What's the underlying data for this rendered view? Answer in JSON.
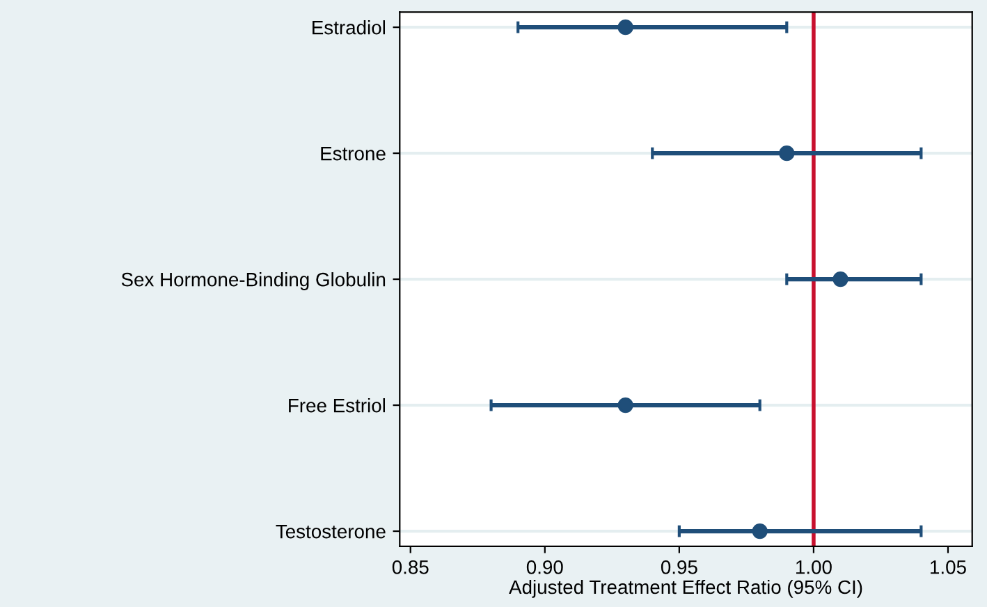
{
  "chart_data": {
    "type": "scatter",
    "orientation": "horizontal",
    "xlabel": "Adjusted Treatment Effect Ratio (95% CI)",
    "categories": [
      "Estradiol",
      "Estrone",
      "Sex Hormone-Binding Globulin",
      "Free Estriol",
      "Testosterone"
    ],
    "values": [
      0.93,
      0.99,
      1.01,
      0.93,
      0.98
    ],
    "errors": [
      [
        0.89,
        0.99
      ],
      [
        0.94,
        1.04
      ],
      [
        0.99,
        1.04
      ],
      [
        0.88,
        0.98
      ],
      [
        0.95,
        1.04
      ]
    ],
    "color": "#1f4e79",
    "marker": "circle",
    "grid": "y",
    "xlim": [
      0.846,
      1.059
    ],
    "xticks": [
      {
        "value": 0.85,
        "label": "0.85"
      },
      {
        "value": 0.9,
        "label": "0.90"
      },
      {
        "value": 0.95,
        "label": "0.95"
      },
      {
        "value": 1.0,
        "label": "1.00"
      },
      {
        "value": 1.05,
        "label": "1.05"
      }
    ],
    "ref_lines": [
      {
        "axis": "x",
        "value": 1.0,
        "label": null,
        "color": "#c8102e"
      }
    ]
  }
}
